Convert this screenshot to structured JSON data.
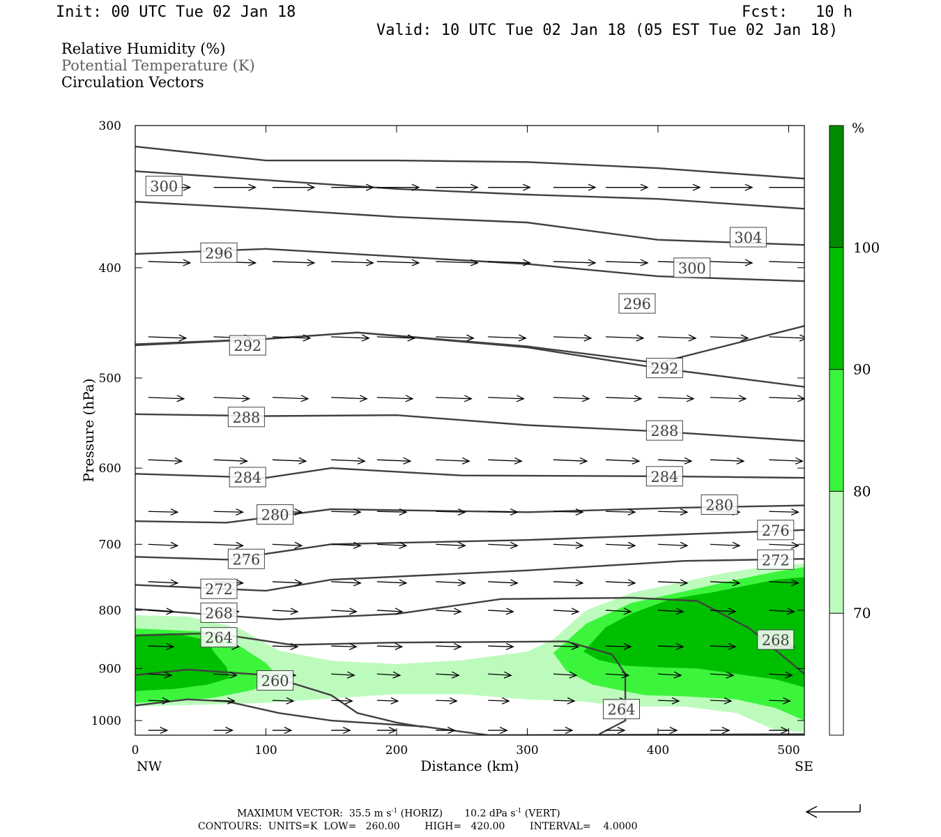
{
  "header": {
    "init": "Init: 00 UTC Tue 02 Jan 18",
    "fcst": "Fcst:   10 h",
    "valid": "Valid: 10 UTC Tue 02 Jan 18 (05 EST Tue 02 Jan 18)",
    "fields": [
      "Relative Humidity (%)",
      "Potential Temperature (K)",
      "Circulation Vectors"
    ]
  },
  "footer": {
    "max_vector": "MAXIMUM VECTOR:  35.5 m s",
    "max_vector_exp": "-1",
    "max_vector_horiz": " (HORIZ)",
    "max_vector_vert": "10.2 dPa s",
    "max_vector_vert_exp": "-1",
    "max_vector_vert_tail": " (VERT)",
    "contours": "CONTOURS:  UNITS=K  LOW=   260.00        HIGH=   420.00        INTERVAL=    4.0000"
  },
  "colors": {
    "rh70": "#bdfbbd",
    "rh80": "#3df43d",
    "rh90": "#00bf00",
    "rh100": "#008b00",
    "contour": "#404040",
    "arrow": "#000000"
  },
  "chart_data": {
    "type": "cross-section",
    "xlabel": "Distance (km)",
    "ylabel": "Pressure (hPa)",
    "xlim": [
      0,
      512
    ],
    "ylim": [
      1030,
      300
    ],
    "y_scale": "log-pressure",
    "x_ticks": [
      0,
      100,
      200,
      300,
      400,
      500
    ],
    "x_end_labels": [
      "NW",
      "SE"
    ],
    "y_ticks": [
      300,
      400,
      500,
      600,
      700,
      800,
      900,
      1000
    ],
    "colorbar": {
      "unit": "%",
      "levels": [
        70,
        80,
        90,
        100
      ],
      "colors": [
        "#ffffff",
        "#bdfbbd",
        "#3df43d",
        "#00bf00",
        "#008b00"
      ]
    },
    "rh_regions": [
      {
        "level": 70,
        "points": [
          [
            0,
            808
          ],
          [
            40,
            810
          ],
          [
            80,
            830
          ],
          [
            110,
            868
          ],
          [
            150,
            886
          ],
          [
            200,
            892
          ],
          [
            250,
            885
          ],
          [
            300,
            870
          ],
          [
            320,
            848
          ],
          [
            345,
            800
          ],
          [
            380,
            772
          ],
          [
            420,
            755
          ],
          [
            450,
            742
          ],
          [
            490,
            730
          ],
          [
            512,
            728
          ],
          [
            512,
            1024
          ],
          [
            490,
            1020
          ],
          [
            460,
            985
          ],
          [
            420,
            972
          ],
          [
            380,
            972
          ],
          [
            340,
            962
          ],
          [
            300,
            958
          ],
          [
            250,
            948
          ],
          [
            200,
            948
          ],
          [
            150,
            956
          ],
          [
            100,
            965
          ],
          [
            60,
            968
          ],
          [
            30,
            970
          ],
          [
            0,
            972
          ]
        ]
      },
      {
        "level": 80,
        "points": [
          [
            0,
            830
          ],
          [
            50,
            835
          ],
          [
            80,
            860
          ],
          [
            100,
            890
          ],
          [
            110,
            918
          ],
          [
            90,
            940
          ],
          [
            60,
            955
          ],
          [
            30,
            962
          ],
          [
            0,
            965
          ]
        ]
      },
      {
        "level": 80,
        "points": [
          [
            320,
            872
          ],
          [
            345,
            822
          ],
          [
            380,
            788
          ],
          [
            420,
            770
          ],
          [
            460,
            752
          ],
          [
            490,
            740
          ],
          [
            512,
            733
          ],
          [
            512,
            1000
          ],
          [
            490,
            975
          ],
          [
            460,
            958
          ],
          [
            420,
            952
          ],
          [
            390,
            950
          ],
          [
            350,
            930
          ],
          [
            330,
            905
          ]
        ]
      },
      {
        "level": 90,
        "points": [
          [
            0,
            840
          ],
          [
            30,
            838
          ],
          [
            55,
            850
          ],
          [
            60,
            870
          ],
          [
            70,
            898
          ],
          [
            72,
            918
          ],
          [
            55,
            930
          ],
          [
            30,
            938
          ],
          [
            0,
            942
          ]
        ]
      },
      {
        "level": 90,
        "points": [
          [
            343,
            870
          ],
          [
            360,
            828
          ],
          [
            380,
            805
          ],
          [
            410,
            782
          ],
          [
            440,
            772
          ],
          [
            470,
            760
          ],
          [
            490,
            752
          ],
          [
            512,
            748
          ],
          [
            512,
            935
          ],
          [
            490,
            920
          ],
          [
            460,
            910
          ],
          [
            430,
            900
          ],
          [
            400,
            898
          ],
          [
            375,
            895
          ],
          [
            355,
            885
          ]
        ]
      }
    ],
    "theta_lines": [
      {
        "value": 304,
        "points": [
          [
            0,
            313
          ],
          [
            100,
            322
          ],
          [
            200,
            322
          ],
          [
            300,
            323
          ],
          [
            400,
            327
          ],
          [
            512,
            334
          ]
        ]
      },
      {
        "value": 300,
        "points": [
          [
            0,
            329
          ],
          [
            100,
            335
          ],
          [
            200,
            341
          ],
          [
            300,
            345
          ],
          [
            400,
            348
          ],
          [
            512,
            355
          ]
        ]
      },
      {
        "value": 300,
        "points": [
          [
            0,
            350
          ],
          [
            100,
            355
          ],
          [
            200,
            361
          ],
          [
            300,
            365
          ],
          [
            400,
            378
          ],
          [
            512,
            382
          ]
        ]
      },
      {
        "value": 296,
        "points": [
          [
            0,
            389
          ],
          [
            100,
            385
          ],
          [
            200,
            391
          ],
          [
            300,
            397
          ],
          [
            400,
            407
          ],
          [
            512,
            411
          ]
        ]
      },
      {
        "value": 292,
        "points": [
          [
            0,
            467
          ],
          [
            100,
            462
          ],
          [
            170,
            456
          ],
          [
            300,
            469
          ],
          [
            400,
            485
          ],
          [
            512,
            450
          ]
        ]
      },
      {
        "value": 292,
        "points": [
          [
            0,
            468
          ],
          [
            100,
            462
          ],
          [
            170,
            456
          ],
          [
            300,
            470
          ],
          [
            400,
            490
          ],
          [
            512,
            509
          ]
        ]
      },
      {
        "value": 288,
        "points": [
          [
            0,
            538
          ],
          [
            100,
            540
          ],
          [
            200,
            539
          ],
          [
            300,
            550
          ],
          [
            400,
            557
          ],
          [
            512,
            568
          ]
        ]
      },
      {
        "value": 284,
        "points": [
          [
            0,
            607
          ],
          [
            100,
            612
          ],
          [
            150,
            600
          ],
          [
            250,
            609
          ],
          [
            400,
            610
          ],
          [
            512,
            612
          ]
        ]
      },
      {
        "value": 280,
        "points": [
          [
            0,
            668
          ],
          [
            70,
            670
          ],
          [
            150,
            652
          ],
          [
            300,
            656
          ],
          [
            420,
            650
          ],
          [
            512,
            647
          ]
        ]
      },
      {
        "value": 276,
        "points": [
          [
            0,
            718
          ],
          [
            70,
            722
          ],
          [
            150,
            700
          ],
          [
            300,
            694
          ],
          [
            420,
            686
          ],
          [
            512,
            680
          ]
        ]
      },
      {
        "value": 272,
        "points": [
          [
            0,
            760
          ],
          [
            100,
            769
          ],
          [
            150,
            752
          ],
          [
            300,
            738
          ],
          [
            420,
            724
          ],
          [
            512,
            721
          ]
        ]
      },
      {
        "value": 268,
        "points": [
          [
            0,
            798
          ],
          [
            110,
            815
          ],
          [
            200,
            806
          ],
          [
            280,
            782
          ],
          [
            380,
            780
          ],
          [
            430,
            785
          ],
          [
            470,
            830
          ],
          [
            512,
            910
          ]
        ]
      },
      {
        "value": 264,
        "points": [
          [
            0,
            842
          ],
          [
            60,
            838
          ],
          [
            120,
            858
          ],
          [
            200,
            854
          ],
          [
            330,
            852
          ],
          [
            365,
            875
          ],
          [
            375,
            910
          ],
          [
            375,
            1000
          ],
          [
            355,
            1028
          ]
        ]
      },
      {
        "value": 260,
        "points": [
          [
            0,
            912
          ],
          [
            40,
            902
          ],
          [
            100,
            912
          ],
          [
            150,
            950
          ],
          [
            170,
            985
          ],
          [
            200,
            1004
          ],
          [
            220,
            1013
          ]
        ]
      },
      {
        "value": 256,
        "points": [
          [
            0,
            970
          ],
          [
            40,
            958
          ],
          [
            70,
            962
          ],
          [
            110,
            985
          ],
          [
            150,
            1000
          ],
          [
            220,
            1012
          ],
          [
            270,
            1030
          ],
          [
            512,
            1028
          ]
        ]
      }
    ],
    "theta_labels": [
      {
        "text": "300",
        "x": 22,
        "p": 339
      },
      {
        "text": "296",
        "x": 64,
        "p": 388
      },
      {
        "text": "292",
        "x": 86,
        "p": 468
      },
      {
        "text": "288",
        "x": 85,
        "p": 541
      },
      {
        "text": "284",
        "x": 86,
        "p": 611
      },
      {
        "text": "280",
        "x": 107,
        "p": 659
      },
      {
        "text": "276",
        "x": 85,
        "p": 721
      },
      {
        "text": "272",
        "x": 64,
        "p": 766
      },
      {
        "text": "268",
        "x": 64,
        "p": 804
      },
      {
        "text": "264",
        "x": 64,
        "p": 845
      },
      {
        "text": "260",
        "x": 107,
        "p": 922
      },
      {
        "text": "304",
        "x": 469,
        "p": 376
      },
      {
        "text": "300",
        "x": 426,
        "p": 400
      },
      {
        "text": "296",
        "x": 384,
        "p": 430
      },
      {
        "text": "292",
        "x": 405,
        "p": 490
      },
      {
        "text": "288",
        "x": 405,
        "p": 556
      },
      {
        "text": "284",
        "x": 405,
        "p": 610
      },
      {
        "text": "280",
        "x": 447,
        "p": 646
      },
      {
        "text": "276",
        "x": 490,
        "p": 680
      },
      {
        "text": "272",
        "x": 490,
        "p": 722
      },
      {
        "text": "268",
        "x": 490,
        "p": 849
      },
      {
        "text": "264",
        "x": 372,
        "p": 977
      }
    ],
    "vector_rows": [
      {
        "p": 340,
        "u": 1.0,
        "w": 0.0,
        "xs": [
          10,
          60,
          105,
          150,
          185,
          230,
          270,
          320,
          360,
          400,
          440,
          485
        ]
      },
      {
        "p": 395,
        "u": 1.0,
        "w": -0.1,
        "xs": [
          10,
          60,
          105,
          150,
          185,
          230,
          270,
          320,
          360,
          400,
          440,
          485
        ]
      },
      {
        "p": 460,
        "u": 0.9,
        "w": -0.1,
        "xs": [
          10,
          60,
          105,
          150,
          185,
          230,
          270,
          320,
          360,
          400,
          440,
          485
        ]
      },
      {
        "p": 520,
        "u": 0.85,
        "w": -0.1,
        "xs": [
          10,
          60,
          105,
          150,
          185,
          230,
          270,
          320,
          360,
          400,
          440,
          485
        ]
      },
      {
        "p": 590,
        "u": 0.8,
        "w": -0.1,
        "xs": [
          10,
          60,
          105,
          150,
          185,
          230,
          270,
          320,
          360,
          400,
          440,
          485
        ]
      },
      {
        "p": 655,
        "u": 0.7,
        "w": -0.05,
        "xs": [
          10,
          60,
          105,
          150,
          185,
          230,
          270,
          320,
          360,
          400,
          440,
          485
        ]
      },
      {
        "p": 700,
        "u": 0.7,
        "w": -0.1,
        "xs": [
          10,
          60,
          105,
          150,
          185,
          230,
          270,
          320,
          360,
          400,
          440,
          485
        ]
      },
      {
        "p": 755,
        "u": 0.7,
        "w": -0.1,
        "xs": [
          10,
          60,
          105,
          150,
          185,
          230,
          270,
          320,
          360,
          400,
          440,
          485
        ]
      },
      {
        "p": 800,
        "u": 0.6,
        "w": -0.1,
        "xs": [
          10,
          60,
          105,
          150,
          185,
          230,
          270,
          320,
          360,
          400,
          440,
          485
        ]
      },
      {
        "p": 860,
        "u": 0.6,
        "w": -0.05,
        "xs": [
          10,
          60,
          105,
          150,
          185,
          230,
          270,
          320,
          360,
          400,
          440,
          485
        ]
      },
      {
        "p": 910,
        "u": 0.55,
        "w": -0.1,
        "xs": [
          10,
          60,
          105,
          150,
          185,
          230,
          270,
          320,
          360,
          400,
          440,
          485
        ]
      },
      {
        "p": 960,
        "u": 0.5,
        "w": -0.05,
        "xs": [
          10,
          60,
          105,
          150,
          185,
          230,
          270,
          320,
          360,
          400,
          440,
          485
        ]
      },
      {
        "p": 1020,
        "u": 0.45,
        "w": 0.0,
        "xs": [
          10,
          60,
          105,
          150,
          185,
          230,
          270,
          320,
          360,
          400,
          440,
          485
        ]
      }
    ]
  }
}
